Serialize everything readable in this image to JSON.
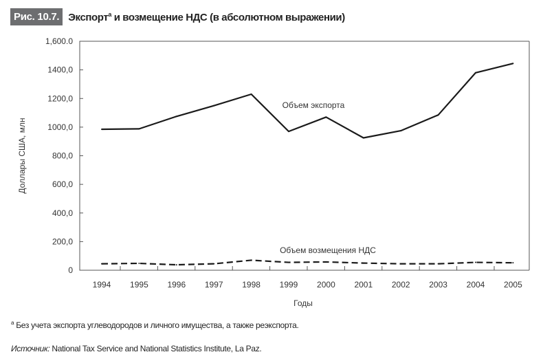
{
  "header": {
    "figure_label": "Рис. 10.7.",
    "title": "Экспорт",
    "title_sup": "a",
    "title_rest": " и возмещение НДС (в абсолютном выражении)"
  },
  "chart_data": {
    "type": "line",
    "title": "Экспорт и возмещение НДС (в абсолютном выражении)",
    "xlabel": "Годы",
    "ylabel": "Доллары США, млн",
    "ylim": [
      0,
      1600
    ],
    "yticks": [
      0,
      200,
      400,
      600,
      800,
      1000,
      1200,
      1400,
      1600
    ],
    "ytick_labels": [
      "0",
      "200,0",
      "400,0",
      "600,0",
      "800,0",
      "1000,0",
      "1200,0",
      "1400,0",
      "1,600.0"
    ],
    "categories": [
      "1994",
      "1995",
      "1996",
      "1997",
      "1998",
      "1999",
      "2000",
      "2001",
      "2002",
      "2003",
      "2004",
      "2005"
    ],
    "series": [
      {
        "name": "Объем экспорта",
        "style": "solid",
        "values": [
          985,
          988,
          1075,
          1150,
          1230,
          970,
          1070,
          925,
          975,
          1085,
          1380,
          1445
        ]
      },
      {
        "name": "Объем возмещения НДС",
        "style": "dashed",
        "values": [
          45,
          48,
          38,
          45,
          70,
          55,
          58,
          50,
          45,
          45,
          55,
          52
        ]
      }
    ],
    "grid": false,
    "legend": "inline labels"
  },
  "footnote": {
    "marker": "a",
    "text": " Без учета экспорта углеводородов и личного имущества, а также реэкспорта."
  },
  "source": {
    "label": "Источник:",
    "text": " National Tax Service and National Statistics Institute, La Paz."
  }
}
